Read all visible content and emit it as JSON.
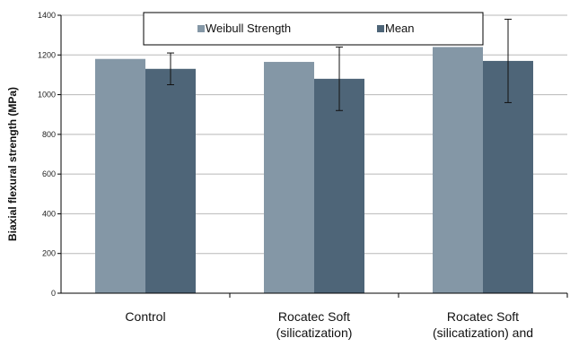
{
  "chart_data": {
    "type": "bar",
    "title": "",
    "xlabel": "",
    "ylabel": "Biaxial flexural strength (MPa)",
    "categories": [
      [
        "Control"
      ],
      [
        "Rocatec Soft",
        "(silicatization)"
      ],
      [
        "Rocatec Soft",
        "(silicatization) and"
      ]
    ],
    "series": [
      {
        "name": "Weibull Strength",
        "values": [
          1180,
          1165,
          1240
        ],
        "error": [
          null,
          null,
          null
        ]
      },
      {
        "name": "Mean",
        "values": [
          1130,
          1080,
          1170
        ],
        "error": [
          80,
          160,
          210
        ]
      }
    ],
    "ylim": [
      0,
      1400
    ],
    "yticks": [
      0,
      200,
      400,
      600,
      800,
      1000,
      1200,
      1400
    ],
    "legend_position": "top",
    "grid": true,
    "colors": {
      "Weibull Strength": "#8497a6",
      "Mean": "#4e6578",
      "grid": "#b8b8b8",
      "axis": "#000000"
    }
  }
}
